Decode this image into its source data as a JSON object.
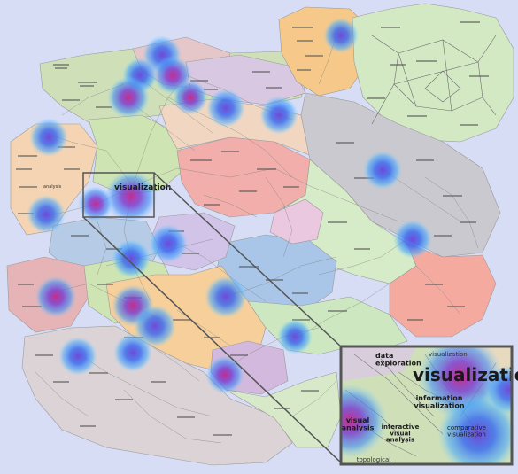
{
  "main_map": {
    "labels": {
      "visualization": "visualization",
      "analysis": "analysis"
    }
  },
  "zoom_inset": {
    "labels": {
      "data_exploration": "data\nexploration",
      "visualization_top": "visualization",
      "visualization_big": "visualizatio",
      "information_visualization": "information\nvisualization",
      "visual_analysis": "visual\nanalysis",
      "interactive_visual_analysis": "interactive\nvisual\nanalysis",
      "comparative_visualization": "comparative\nvisualization",
      "topological": "topological"
    }
  },
  "colors": {
    "background": "#d8ddf6",
    "heat_outer": "#3a8bff",
    "heat_core": "#b0309c",
    "inset_border": "#555555"
  }
}
